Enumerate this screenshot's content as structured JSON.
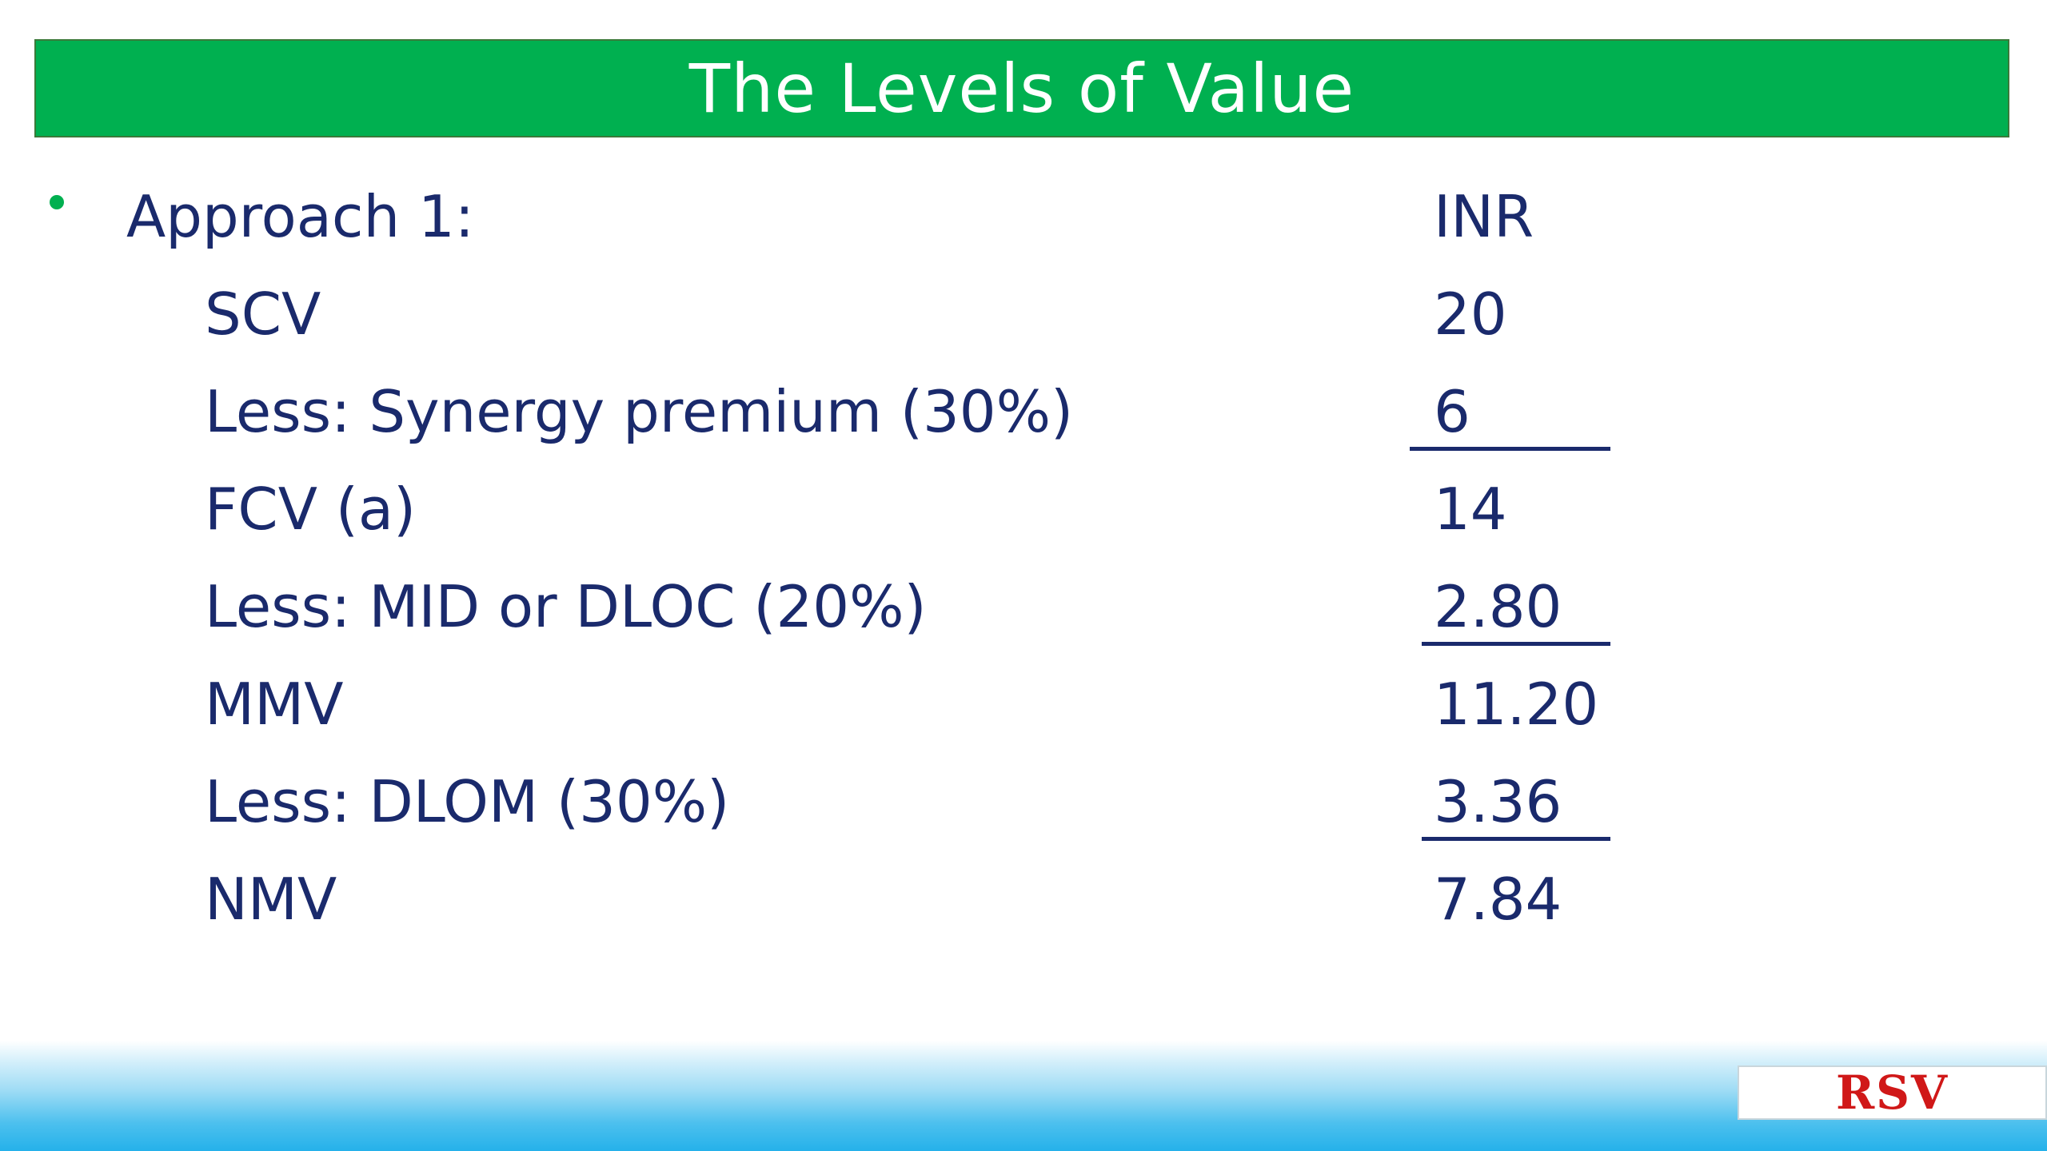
{
  "title": "The Levels of Value",
  "rows": [
    {
      "label": "Approach 1:",
      "value": "INR"
    },
    {
      "label": "SCV",
      "value": "20"
    },
    {
      "label": "Less: Synergy premium (30%)",
      "value": "6"
    },
    {
      "label": "FCV (a)",
      "value": "14"
    },
    {
      "label": "Less: MID or DLOC (20%)",
      "value": "2.80"
    },
    {
      "label": "MMV",
      "value": "11.20"
    },
    {
      "label": "Less: DLOM (30%)",
      "value": "3.36"
    },
    {
      "label": "NMV",
      "value": "7.84"
    }
  ],
  "logo": "RSV",
  "colors": {
    "accent": "#00b050",
    "text": "#1a2a6c",
    "logo": "#d01818"
  }
}
